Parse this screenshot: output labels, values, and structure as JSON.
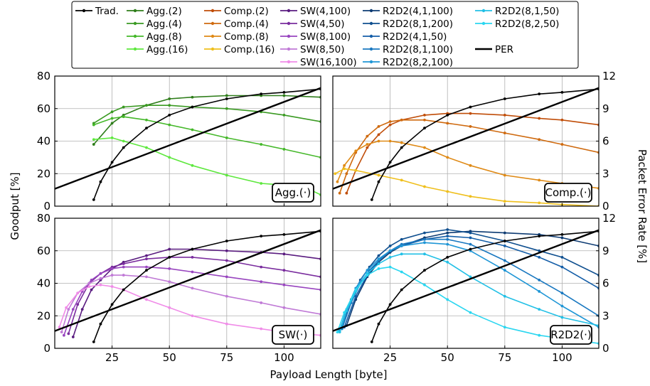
{
  "chart_data": {
    "type": "line",
    "xlabel": "Payload Length [byte]",
    "ylabel": "Goodput [%]",
    "y2label": "Packet Error Rate [%]",
    "xlim": [
      0,
      116
    ],
    "ylim": [
      0,
      80
    ],
    "y2lim": [
      0,
      12
    ],
    "xticks": [
      "25",
      "50",
      "75",
      "100"
    ],
    "yticks": [
      "0",
      "20",
      "40",
      "60",
      "80"
    ],
    "y2ticks": [
      "0",
      "3",
      "6",
      "9",
      "12"
    ],
    "grid": true,
    "legend_position": "top",
    "legend": [
      [
        "Trad.",
        "Agg.(2)",
        "Comp.(2)",
        "SW(4,100)",
        "R2D2(4,1,100)",
        "R2D2(8,1,50)"
      ],
      [
        "",
        "Agg.(4)",
        "Comp.(4)",
        "SW(4,50)",
        "R2D2(8,1,200)",
        "R2D2(8,2,50)"
      ],
      [
        "",
        "Agg.(8)",
        "Comp.(8)",
        "SW(8,100)",
        "R2D2(4,1,50)",
        ""
      ],
      [
        "",
        "Agg.(16)",
        "Comp.(16)",
        "SW(8,50)",
        "R2D2(8,1,100)",
        "PER"
      ],
      [
        "",
        "",
        "",
        "SW(16,100)",
        "R2D2(8,2,100)",
        ""
      ]
    ],
    "legend_colors": [
      [
        "#000000",
        "#2e7d1a",
        "#c04d08",
        "#5a1c80",
        "#0d3b73",
        "#22c0e6"
      ],
      [
        "",
        "#3a9a22",
        "#cf6a0f",
        "#7a2d9e",
        "#0f4f8f",
        "#2ad6f0"
      ],
      [
        "",
        "#45b82a",
        "#df8a16",
        "#9845bf",
        "#145ea8",
        ""
      ],
      [
        "",
        "#5ee83e",
        "#efbf1c",
        "#c07ad6",
        "#1a78c0",
        "#000000"
      ],
      [
        "",
        "",
        "",
        "#f08ce8",
        "#1f96d6",
        ""
      ]
    ],
    "legend_marker": [
      [
        true,
        true,
        true,
        true,
        true,
        true
      ],
      [
        false,
        true,
        true,
        true,
        true,
        true
      ],
      [
        false,
        true,
        true,
        true,
        true,
        false
      ],
      [
        false,
        true,
        true,
        true,
        true,
        false
      ],
      [
        false,
        false,
        false,
        true,
        true,
        false
      ]
    ],
    "panels": [
      {
        "tag": "Agg.(·)",
        "series": [
          {
            "name": "Trad.",
            "color": "#000000",
            "marker": true,
            "x": [
              17,
              20,
              25,
              30,
              40,
              50,
              60,
              75,
              90,
              100,
              116
            ],
            "y": [
              4,
              15,
              27,
              36,
              48,
              56,
              61,
              66,
              69,
              70,
              72
            ]
          },
          {
            "name": "PER",
            "color": "#000000",
            "marker": false,
            "y2": true,
            "x": [
              0,
              116
            ],
            "y": [
              1.6,
              10.9
            ]
          },
          {
            "name": "Agg.(2)",
            "color": "#2e7d1a",
            "marker": true,
            "x": [
              17,
              25,
              30,
              40,
              50,
              60,
              75,
              90,
              100,
              116
            ],
            "y": [
              38,
              51,
              56,
              62,
              66,
              67,
              68,
              68,
              68,
              67
            ]
          },
          {
            "name": "Agg.(4)",
            "color": "#3a9a22",
            "marker": true,
            "x": [
              17,
              25,
              30,
              40,
              50,
              60,
              75,
              90,
              100,
              116
            ],
            "y": [
              51,
              58,
              61,
              62,
              62,
              61,
              60,
              58,
              56,
              52
            ]
          },
          {
            "name": "Agg.(8)",
            "color": "#45b82a",
            "marker": true,
            "x": [
              17,
              25,
              30,
              40,
              50,
              60,
              75,
              90,
              100,
              116
            ],
            "y": [
              50,
              54,
              55,
              53,
              50,
              47,
              42,
              38,
              35,
              30
            ]
          },
          {
            "name": "Agg.(16)",
            "color": "#5ee83e",
            "marker": true,
            "x": [
              17,
              25,
              30,
              40,
              50,
              60,
              75,
              90,
              100,
              110,
              116
            ],
            "y": [
              41,
              42,
              40,
              36,
              30,
              25,
              19,
              14,
              13,
              11,
              7
            ]
          }
        ]
      },
      {
        "tag": "Comp.(·)",
        "series": [
          {
            "name": "Trad.",
            "color": "#000000",
            "marker": true,
            "x": [
              17,
              20,
              25,
              30,
              40,
              50,
              60,
              75,
              90,
              100,
              116
            ],
            "y": [
              4,
              15,
              27,
              36,
              48,
              56,
              61,
              66,
              69,
              70,
              72
            ]
          },
          {
            "name": "PER",
            "color": "#000000",
            "marker": false,
            "y2": true,
            "x": [
              0,
              116
            ],
            "y": [
              1.6,
              10.9
            ]
          },
          {
            "name": "Comp.(2)",
            "color": "#c04d08",
            "marker": true,
            "x": [
              6,
              10,
              15,
              20,
              25,
              30,
              40,
              50,
              60,
              75,
              90,
              100,
              116
            ],
            "y": [
              8,
              22,
              36,
              44,
              50,
              53,
              56,
              57,
              57,
              56,
              54,
              53,
              50
            ]
          },
          {
            "name": "Comp.(4)",
            "color": "#cf6a0f",
            "marker": true,
            "x": [
              3,
              6,
              10,
              15,
              20,
              25,
              30,
              40,
              50,
              60,
              75,
              90,
              100,
              116
            ],
            "y": [
              8,
              20,
              33,
              43,
              49,
              52,
              53,
              53,
              51,
              49,
              45,
              41,
              38,
              33
            ]
          },
          {
            "name": "Comp.(8)",
            "color": "#df8a16",
            "marker": true,
            "x": [
              2,
              5,
              10,
              15,
              20,
              25,
              30,
              40,
              50,
              60,
              75,
              90,
              100,
              116
            ],
            "y": [
              15,
              25,
              34,
              38,
              40,
              40,
              39,
              36,
              30,
              25,
              19,
              16,
              14,
              11
            ]
          },
          {
            "name": "Comp.(16)",
            "color": "#efbf1c",
            "marker": true,
            "x": [
              1,
              5,
              10,
              20,
              30,
              40,
              50,
              60,
              75,
              90,
              100,
              116
            ],
            "y": [
              20,
              23,
              22,
              19,
              16,
              12,
              9,
              6,
              3,
              2,
              1,
              0
            ]
          }
        ]
      },
      {
        "tag": "SW(·)",
        "series": [
          {
            "name": "Trad.",
            "color": "#000000",
            "marker": true,
            "x": [
              17,
              20,
              25,
              30,
              40,
              50,
              60,
              75,
              90,
              100,
              116
            ],
            "y": [
              4,
              15,
              27,
              36,
              48,
              56,
              61,
              66,
              69,
              70,
              72
            ]
          },
          {
            "name": "PER",
            "color": "#000000",
            "marker": false,
            "y2": true,
            "x": [
              0,
              116
            ],
            "y": [
              1.6,
              10.9
            ]
          },
          {
            "name": "SW(4,100)",
            "color": "#5a1c80",
            "marker": true,
            "x": [
              8,
              12,
              16,
              20,
              25,
              30,
              40,
              50,
              60,
              75,
              90,
              100,
              116
            ],
            "y": [
              7,
              24,
              36,
              42,
              49,
              53,
              57,
              61,
              61,
              60,
              59,
              58,
              55
            ]
          },
          {
            "name": "SW(4,50)",
            "color": "#7a2d9e",
            "marker": true,
            "x": [
              6,
              10,
              15,
              20,
              25,
              30,
              40,
              50,
              60,
              75,
              90,
              100,
              116
            ],
            "y": [
              9,
              27,
              40,
              46,
              50,
              52,
              55,
              56,
              56,
              54,
              50,
              48,
              44
            ]
          },
          {
            "name": "SW(8,100)",
            "color": "#9845bf",
            "marker": true,
            "x": [
              4,
              8,
              12,
              16,
              20,
              25,
              30,
              40,
              50,
              60,
              75,
              90,
              100,
              116
            ],
            "y": [
              8,
              24,
              35,
              42,
              46,
              49,
              50,
              50,
              49,
              47,
              44,
              41,
              39,
              36
            ]
          },
          {
            "name": "SW(8,50)",
            "color": "#c07ad6",
            "marker": true,
            "x": [
              3,
              6,
              10,
              15,
              20,
              25,
              30,
              40,
              50,
              60,
              75,
              90,
              100,
              116
            ],
            "y": [
              10,
              24,
              34,
              40,
              43,
              45,
              45,
              44,
              41,
              37,
              32,
              28,
              25,
              21
            ]
          },
          {
            "name": "SW(16,100)",
            "color": "#f08ce8",
            "marker": true,
            "x": [
              2,
              5,
              10,
              15,
              20,
              25,
              30,
              40,
              50,
              60,
              75,
              90,
              100,
              116
            ],
            "y": [
              13,
              25,
              34,
              38,
              39,
              38,
              36,
              30,
              25,
              20,
              15,
              12,
              10,
              8
            ]
          }
        ]
      },
      {
        "tag": "R2D2(·)",
        "series": [
          {
            "name": "Trad.",
            "color": "#000000",
            "marker": true,
            "x": [
              17,
              20,
              25,
              30,
              40,
              50,
              60,
              75,
              90,
              100,
              116
            ],
            "y": [
              4,
              15,
              27,
              36,
              48,
              56,
              61,
              66,
              69,
              70,
              72
            ]
          },
          {
            "name": "PER",
            "color": "#000000",
            "marker": false,
            "y2": true,
            "x": [
              0,
              116
            ],
            "y": [
              1.6,
              10.9
            ]
          },
          {
            "name": "R2D2(4,1,100)",
            "color": "#0d3b73",
            "marker": true,
            "x": [
              6,
              10,
              15,
              20,
              25,
              30,
              40,
              50,
              60,
              75,
              90,
              100,
              116
            ],
            "y": [
              14,
              30,
              44,
              53,
              59,
              63,
              68,
              71,
              72,
              71,
              70,
              68,
              63
            ]
          },
          {
            "name": "R2D2(8,1,200)",
            "color": "#0f4f8f",
            "marker": true,
            "x": [
              4,
              8,
              12,
              16,
              20,
              25,
              30,
              40,
              50,
              60,
              75,
              90,
              100,
              116
            ],
            "y": [
              14,
              30,
              42,
              50,
              57,
              63,
              67,
              71,
              73,
              71,
              66,
              60,
              56,
              45
            ]
          },
          {
            "name": "R2D2(4,1,50)",
            "color": "#145ea8",
            "marker": true,
            "x": [
              5,
              10,
              15,
              20,
              25,
              30,
              40,
              50,
              60,
              75,
              90,
              100,
              116
            ],
            "y": [
              13,
              32,
              45,
              54,
              60,
              63,
              67,
              69,
              68,
              63,
              56,
              50,
              37
            ]
          },
          {
            "name": "R2D2(8,1,100)",
            "color": "#1a78c0",
            "marker": true,
            "x": [
              4,
              8,
              12,
              16,
              20,
              25,
              30,
              40,
              50,
              60,
              75,
              90,
              100,
              116
            ],
            "y": [
              12,
              28,
              40,
              48,
              54,
              60,
              64,
              67,
              67,
              64,
              54,
              42,
              34,
              20
            ]
          },
          {
            "name": "R2D2(8,2,100)",
            "color": "#1f96d6",
            "marker": true,
            "x": [
              3,
              6,
              10,
              15,
              20,
              25,
              30,
              40,
              50,
              60,
              75,
              90,
              100,
              116
            ],
            "y": [
              11,
              24,
              37,
              48,
              55,
              60,
              63,
              65,
              64,
              60,
              48,
              35,
              26,
              13
            ]
          },
          {
            "name": "R2D2(8,1,50)",
            "color": "#22c0e6",
            "marker": true,
            "x": [
              3,
              6,
              10,
              15,
              20,
              25,
              30,
              40,
              50,
              60,
              75,
              90,
              100,
              116
            ],
            "y": [
              10,
              23,
              35,
              46,
              52,
              56,
              58,
              58,
              53,
              44,
              32,
              24,
              19,
              14
            ]
          },
          {
            "name": "R2D2(8,2,50)",
            "color": "#2ad6f0",
            "marker": true,
            "x": [
              2,
              5,
              10,
              15,
              20,
              25,
              30,
              40,
              50,
              60,
              75,
              90,
              100,
              116
            ],
            "y": [
              10,
              22,
              36,
              45,
              49,
              50,
              47,
              39,
              30,
              22,
              13,
              8,
              6,
              3
            ]
          }
        ]
      }
    ]
  }
}
